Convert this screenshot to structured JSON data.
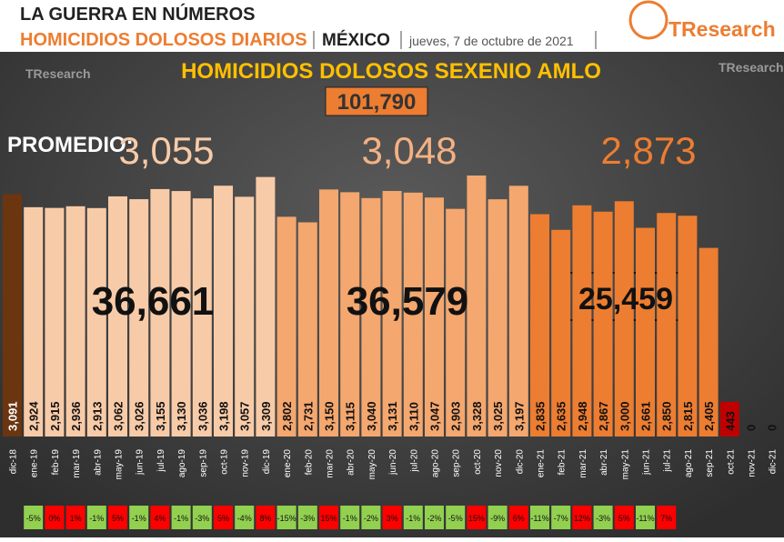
{
  "header": {
    "title": "LA GUERRA EN NÚMEROS",
    "subtitle": "HOMICIDIOS DOLOSOS DIARIOS",
    "location": "MÉXICO",
    "date": "jueves, 7 de octubre de 2021",
    "logo": "TResearch"
  },
  "chart_data": {
    "type": "bar",
    "title": "HOMICIDIOS DOLOSOS SEXENIO AMLO",
    "total": {
      "value": 101790,
      "label": "101,790"
    },
    "average_label": "PROMEDIO:",
    "averages": [
      {
        "value": 3055,
        "label": "3,055"
      },
      {
        "value": 3048,
        "label": "3,048"
      },
      {
        "value": 2873,
        "label": "2,873"
      }
    ],
    "period_totals": [
      {
        "value": 36661,
        "label": "36,661"
      },
      {
        "value": 36579,
        "label": "36,579"
      },
      {
        "value": 25459,
        "label": "25,459"
      }
    ],
    "categories": [
      "dic-18",
      "ene-19",
      "feb-19",
      "mar-19",
      "abr-19",
      "may-19",
      "jun-19",
      "jul-19",
      "ago-19",
      "sep-19",
      "oct-19",
      "nov-19",
      "dic-19",
      "ene-20",
      "feb-20",
      "mar-20",
      "abr-20",
      "may-20",
      "jun-20",
      "jul-20",
      "ago-20",
      "sep-20",
      "oct-20",
      "nov-20",
      "dic-20",
      "ene-21",
      "feb-21",
      "mar-21",
      "abr-21",
      "may-21",
      "jun-21",
      "jul-21",
      "ago-21",
      "sep-21",
      "oct-21",
      "nov-21",
      "dic-21"
    ],
    "values": [
      3091,
      2924,
      2915,
      2936,
      2913,
      3062,
      3026,
      3155,
      3130,
      3036,
      3198,
      3057,
      3309,
      2802,
      2731,
      3150,
      3115,
      3040,
      3131,
      3110,
      3047,
      2903,
      3328,
      3025,
      3197,
      2835,
      2635,
      2948,
      2867,
      3000,
      2661,
      2850,
      2815,
      2405,
      443,
      0,
      0
    ],
    "value_labels": [
      "3,091",
      "2,924",
      "2,915",
      "2,936",
      "2,913",
      "3,062",
      "3,026",
      "3,155",
      "3,130",
      "3,036",
      "3,198",
      "3,057",
      "3,309",
      "2,802",
      "2,731",
      "3,150",
      "3,115",
      "3,040",
      "3,131",
      "3,110",
      "3,047",
      "2,903",
      "3,328",
      "3,025",
      "3,197",
      "2,835",
      "2,635",
      "2,948",
      "2,867",
      "3,000",
      "2,661",
      "2,850",
      "2,815",
      "2,405",
      "443",
      "0",
      "0"
    ],
    "colors": [
      "#6b3510",
      "#f8cba8",
      "#f8cba8",
      "#f8cba8",
      "#f8cba8",
      "#f8cba8",
      "#f8cba8",
      "#f8cba8",
      "#f8cba8",
      "#f8cba8",
      "#f8cba8",
      "#f8cba8",
      "#f8cba8",
      "#f4a76e",
      "#f4a76e",
      "#f4a76e",
      "#f4a76e",
      "#f4a76e",
      "#f4a76e",
      "#f4a76e",
      "#f4a76e",
      "#f4a76e",
      "#f4a76e",
      "#f4a76e",
      "#f4a76e",
      "#ed7d31",
      "#ed7d31",
      "#ed7d31",
      "#ed7d31",
      "#ed7d31",
      "#ed7d31",
      "#ed7d31",
      "#ed7d31",
      "#ed7d31",
      "#c00000",
      "#ed7d31",
      "#ed7d31"
    ],
    "changes": {
      "values": [
        null,
        -5,
        0,
        1,
        -1,
        5,
        -1,
        4,
        -1,
        -3,
        5,
        -4,
        8,
        -15,
        -3,
        15,
        -1,
        -2,
        3,
        -1,
        -2,
        -5,
        15,
        -9,
        6,
        -11,
        -7,
        12,
        -3,
        5,
        -11,
        7,
        null,
        null,
        null,
        null,
        null
      ],
      "value_labels": [
        null,
        "-5%",
        "0%",
        "1%",
        "-1%",
        "5%",
        "-1%",
        "4%",
        "-1%",
        "-3%",
        "5%",
        "-4%",
        "8%",
        "-15%",
        "-3%",
        "15%",
        "-1%",
        "-2%",
        "3%",
        "-1%",
        "-2%",
        "-5%",
        "15%",
        "-9%",
        "6%",
        "-11%",
        "-7%",
        "12%",
        "-3%",
        "5%",
        "-11%",
        "7%",
        null,
        null,
        null,
        null,
        null
      ],
      "positive_color": "#ff0000",
      "negative_color": "#92d050"
    }
  }
}
